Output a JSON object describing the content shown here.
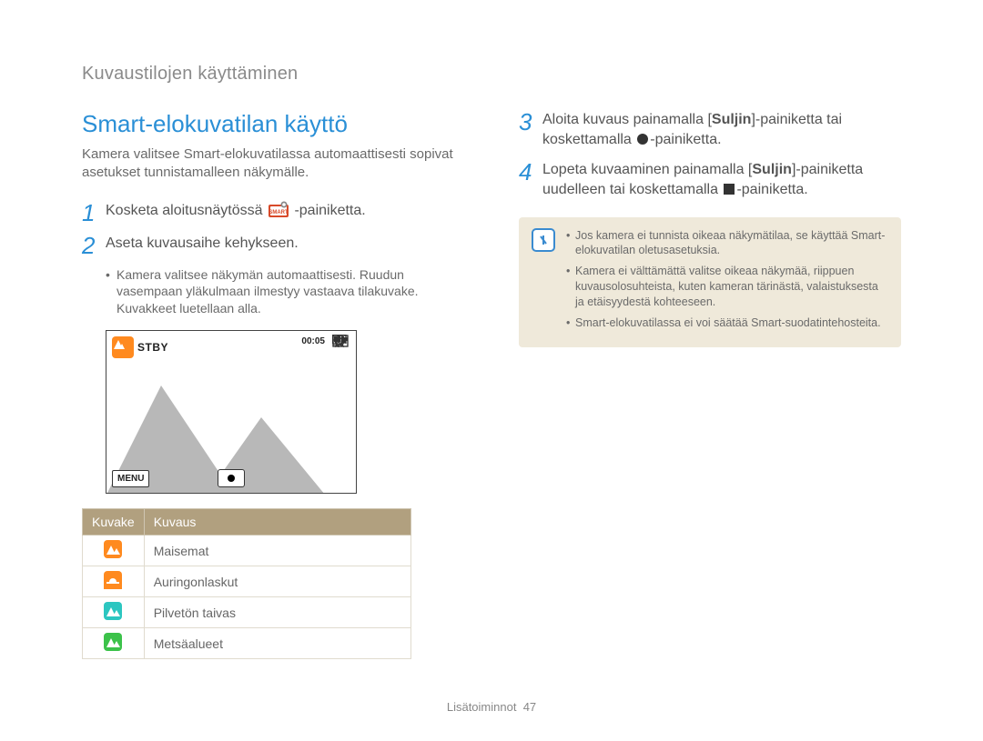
{
  "breadcrumb": "Kuvaustilojen käyttäminen",
  "title": "Smart-elokuvatilan käyttö",
  "intro": "Kamera valitsee Smart-elokuvatilassa automaattisesti sopivat asetukset tunnistamalleen näkymälle.",
  "steps": {
    "s1_pre": "Kosketa aloitusnäytössä ",
    "s1_post": " -painiketta.",
    "s2": "Aseta kuvausaihe kehykseen.",
    "s2_bullet": "Kamera valitsee näkymän automaattisesti. Ruudun vasempaan yläkulmaan ilmestyy vastaava tilakuvake. Kuvakkeet luetellaan alla.",
    "s3_pre": "Aloita kuvaus painamalla [",
    "s3_bold": "Suljin",
    "s3_mid": "]-painiketta tai koskettamalla ",
    "s3_post": "-painiketta.",
    "s4_pre": "Lopeta kuvaaminen painamalla [",
    "s4_bold": "Suljin",
    "s4_mid": "]-painiketta uudelleen tai koskettamalla ",
    "s4_post": "-painiketta."
  },
  "screenshot": {
    "stby": "STBY",
    "time": "00:05",
    "menu": "MENU",
    "mountain_color": "#b8b8b8",
    "bg_color": "#ffffff",
    "badge_color": "#ff8a1f"
  },
  "table": {
    "headers": {
      "icon": "Kuvake",
      "desc": "Kuvaus"
    },
    "rows": [
      {
        "name": "landscape-icon",
        "color": "#ff8a1f",
        "shape": "mountain",
        "desc": "Maisemat"
      },
      {
        "name": "sunset-icon",
        "color": "#ff8a1f",
        "shape": "sunset",
        "desc": "Auringonlaskut"
      },
      {
        "name": "sky-icon",
        "color": "#2cc6c0",
        "shape": "mountain",
        "desc": "Pilvetön taivas"
      },
      {
        "name": "forest-icon",
        "color": "#3cc24a",
        "shape": "mountain",
        "desc": "Metsäalueet"
      }
    ]
  },
  "notes": [
    "Jos kamera ei tunnista oikeaa näkymätilaa, se käyttää Smart-elokuvatilan oletusasetuksia.",
    "Kamera ei välttämättä valitse oikeaa näkymää, riippuen kuvausolosuhteista, kuten kameran tärinästä, valaistuksesta ja etäisyydestä kohteeseen.",
    "Smart-elokuvatilassa ei voi säätää Smart-suodatintehosteita."
  ],
  "footer": {
    "section": "Lisätoiminnot",
    "page": "47"
  },
  "colors": {
    "accent": "#2a8fd6",
    "table_header_bg": "#b1a07f",
    "note_bg": "#efe9da"
  }
}
